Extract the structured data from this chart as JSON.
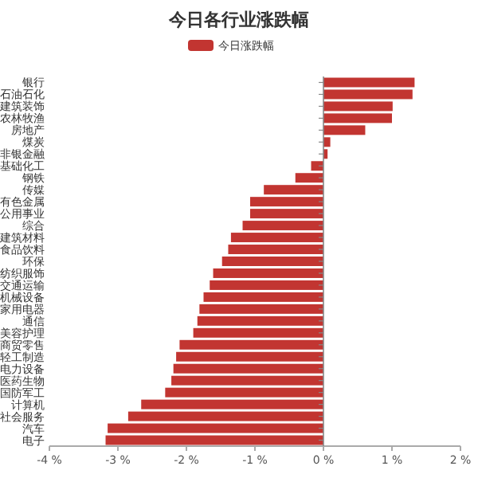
{
  "chart_data": {
    "type": "bar",
    "orientation": "horizontal",
    "title": "今日各行业涨跌幅",
    "legend": "top",
    "categories": [
      "银行",
      "石油石化",
      "建筑装饰",
      "农林牧渔",
      "房地产",
      "煤炭",
      "非银金融",
      "基础化工",
      "钢铁",
      "传媒",
      "有色金属",
      "公用事业",
      "综合",
      "建筑材料",
      "食品饮料",
      "环保",
      "纺织服饰",
      "交通运输",
      "机械设备",
      "家用电器",
      "通信",
      "美容护理",
      "商贸零售",
      "轻工制造",
      "电力设备",
      "医药生物",
      "国防军工",
      "计算机",
      "社会服务",
      "汽车",
      "电子"
    ],
    "series": [
      {
        "name": "今日涨跌幅",
        "color": "#c23531",
        "values": [
          1.33,
          1.3,
          1.01,
          1.0,
          0.61,
          0.1,
          0.06,
          -0.18,
          -0.41,
          -0.87,
          -1.07,
          -1.07,
          -1.18,
          -1.35,
          -1.39,
          -1.48,
          -1.61,
          -1.66,
          -1.75,
          -1.81,
          -1.84,
          -1.9,
          -2.1,
          -2.15,
          -2.19,
          -2.22,
          -2.31,
          -2.66,
          -2.85,
          -3.15,
          -3.18
        ]
      }
    ],
    "xlim": [
      -4,
      2
    ],
    "xticks": [
      {
        "value": -4,
        "label": "-4 %"
      },
      {
        "value": -3,
        "label": "-3 %"
      },
      {
        "value": -2,
        "label": "-2 %"
      },
      {
        "value": -1,
        "label": "-1 %"
      },
      {
        "value": 0,
        "label": "0 %"
      },
      {
        "value": 1,
        "label": "1 %"
      },
      {
        "value": 2,
        "label": "2 %"
      }
    ]
  }
}
